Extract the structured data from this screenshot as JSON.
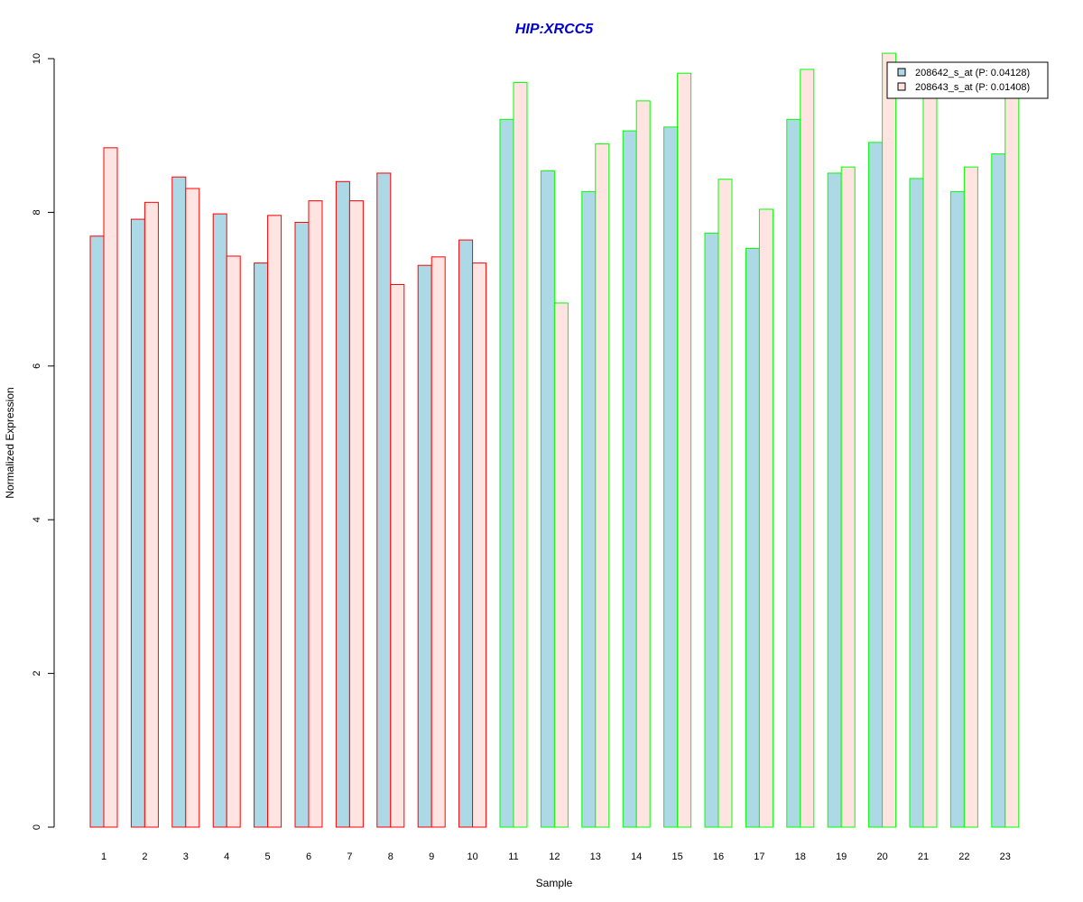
{
  "chart_data": {
    "type": "bar",
    "title": "HIP:XRCC5",
    "xlabel": "Sample",
    "ylabel": "Normalized Expression",
    "ylim": [
      0,
      10
    ],
    "yticks": [
      "0",
      "2",
      "4",
      "6",
      "8",
      "10"
    ],
    "categories": [
      "1",
      "2",
      "3",
      "4",
      "5",
      "6",
      "7",
      "8",
      "9",
      "10",
      "11",
      "12",
      "13",
      "14",
      "15",
      "16",
      "17",
      "18",
      "19",
      "20",
      "21",
      "22",
      "23"
    ],
    "series": [
      {
        "name": "208642_s_at (P: 0.04128)",
        "fill": "#add8e6",
        "values": [
          7.69,
          7.91,
          8.46,
          7.98,
          7.34,
          7.87,
          8.4,
          8.51,
          7.31,
          7.64,
          9.21,
          8.54,
          8.27,
          9.06,
          9.11,
          7.73,
          7.53,
          9.21,
          8.51,
          8.91,
          8.44,
          8.27,
          8.76
        ]
      },
      {
        "name": "208643_s_at (P: 0.01408)",
        "fill": "#ffe4e1",
        "values": [
          8.84,
          8.13,
          8.31,
          7.43,
          7.96,
          8.15,
          8.15,
          7.06,
          7.42,
          7.34,
          9.69,
          6.82,
          8.89,
          9.45,
          9.81,
          8.43,
          8.04,
          9.86,
          8.59,
          10.07,
          9.9,
          8.59,
          9.94
        ]
      }
    ],
    "group_border_colors": [
      "#ff0000",
      "#ff0000",
      "#ff0000",
      "#ff0000",
      "#ff0000",
      "#ff0000",
      "#ff0000",
      "#ff0000",
      "#ff0000",
      "#ff0000",
      "#00ff00",
      "#00ff00",
      "#00ff00",
      "#00ff00",
      "#00ff00",
      "#00ff00",
      "#00ff00",
      "#00ff00",
      "#00ff00",
      "#00ff00",
      "#00ff00",
      "#00ff00",
      "#00ff00"
    ],
    "title_color": "#0000cd",
    "legend_position": "top-right",
    "grid": false
  }
}
